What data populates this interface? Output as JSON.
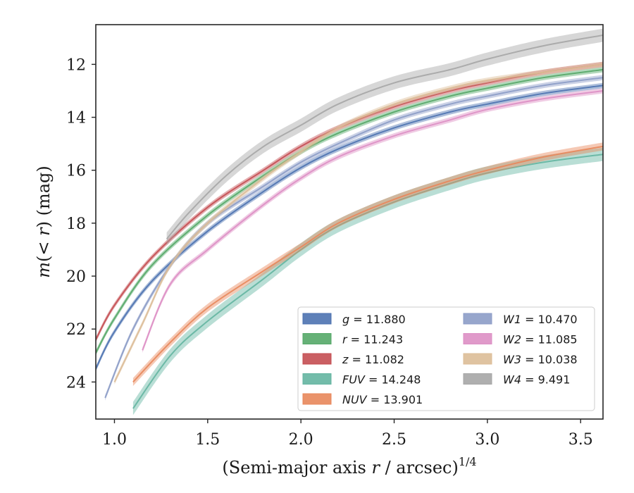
{
  "chart_data": {
    "type": "line",
    "xlabel": "(Semi-major axis r / arcsec)",
    "xlabel_var": "r",
    "xlabel_sup": "1/4",
    "ylabel": "m(< r) (mag)",
    "xlim": [
      0.9,
      3.62
    ],
    "ylim": [
      25.4,
      10.5
    ],
    "y_inverted": true,
    "x_ticks": [
      1.0,
      1.5,
      2.0,
      2.5,
      3.0,
      3.5
    ],
    "x_tick_labels": [
      "1.0",
      "1.5",
      "2.0",
      "2.5",
      "3.0",
      "3.5"
    ],
    "y_ticks": [
      12,
      14,
      16,
      18,
      20,
      22,
      24
    ],
    "y_tick_labels": [
      "12",
      "14",
      "16",
      "18",
      "20",
      "22",
      "24"
    ],
    "legend_position": "lower-right",
    "series": [
      {
        "name": "g",
        "legend_label": "g = 11.880",
        "color": "#4c72b0",
        "x": [
          0.9,
          1.0,
          1.2,
          1.5,
          1.8,
          2.0,
          2.2,
          2.5,
          2.8,
          3.0,
          3.3,
          3.62
        ],
        "y": [
          23.5,
          22.1,
          20.2,
          18.3,
          16.8,
          15.9,
          15.2,
          14.4,
          13.8,
          13.5,
          13.1,
          12.8
        ],
        "band_halfwidth": 0.1
      },
      {
        "name": "r",
        "legend_label": "r = 11.243",
        "color": "#55a868",
        "x": [
          0.9,
          1.0,
          1.2,
          1.5,
          1.8,
          2.0,
          2.2,
          2.5,
          2.8,
          3.0,
          3.3,
          3.62
        ],
        "y": [
          22.9,
          21.6,
          19.6,
          17.7,
          16.2,
          15.3,
          14.6,
          13.8,
          13.2,
          12.9,
          12.5,
          12.2
        ],
        "band_halfwidth": 0.1
      },
      {
        "name": "z",
        "legend_label": "z = 11.082",
        "color": "#c44e52",
        "x": [
          0.9,
          1.0,
          1.2,
          1.5,
          1.8,
          2.0,
          2.2,
          2.5,
          2.8,
          3.0,
          3.3,
          3.62
        ],
        "y": [
          22.4,
          21.1,
          19.3,
          17.4,
          16.0,
          15.1,
          14.4,
          13.6,
          13.0,
          12.7,
          12.3,
          12.0
        ],
        "band_halfwidth": 0.1
      },
      {
        "name": "FUV",
        "legend_label": "FUV = 14.248",
        "color": "#64b5a1",
        "x": [
          1.1,
          1.3,
          1.5,
          1.8,
          2.0,
          2.2,
          2.5,
          2.8,
          3.0,
          3.3,
          3.62
        ],
        "y": [
          25.0,
          23.0,
          21.7,
          20.1,
          19.0,
          18.1,
          17.2,
          16.5,
          16.1,
          15.7,
          15.4
        ],
        "band_halfwidth": 0.25
      },
      {
        "name": "NUV",
        "legend_label": "NUV = 13.901",
        "color": "#e8875b",
        "x": [
          1.1,
          1.3,
          1.5,
          1.8,
          2.0,
          2.2,
          2.5,
          2.8,
          3.0,
          3.3,
          3.62
        ],
        "y": [
          24.0,
          22.5,
          21.2,
          19.8,
          18.9,
          18.0,
          17.1,
          16.4,
          16.0,
          15.5,
          15.1
        ],
        "band_halfwidth": 0.15
      },
      {
        "name": "W1",
        "legend_label": "W1 = 10.470",
        "color": "#8c9cc7",
        "x": [
          0.95,
          1.1,
          1.3,
          1.5,
          1.8,
          2.0,
          2.2,
          2.5,
          2.8,
          3.0,
          3.3,
          3.62
        ],
        "y": [
          24.6,
          22.0,
          19.6,
          18.0,
          16.6,
          15.7,
          15.0,
          14.1,
          13.5,
          13.2,
          12.8,
          12.5
        ],
        "band_halfwidth": 0.1
      },
      {
        "name": "W2",
        "legend_label": "W2 = 11.085",
        "color": "#dd8fc4",
        "x": [
          1.15,
          1.3,
          1.5,
          1.8,
          2.0,
          2.2,
          2.5,
          2.8,
          3.0,
          3.3,
          3.62
        ],
        "y": [
          22.8,
          20.3,
          19.0,
          17.3,
          16.3,
          15.5,
          14.7,
          14.1,
          13.7,
          13.3,
          13.0
        ],
        "band_halfwidth": 0.1
      },
      {
        "name": "W3",
        "legend_label": "W3 = 10.038",
        "color": "#dcbc97",
        "x": [
          1.0,
          1.15,
          1.3,
          1.5,
          1.8,
          2.0,
          2.2,
          2.5,
          2.8,
          3.0,
          3.3,
          3.62
        ],
        "y": [
          24.0,
          21.8,
          19.6,
          18.0,
          16.3,
          15.3,
          14.4,
          13.5,
          12.9,
          12.6,
          12.3,
          12.0
        ],
        "band_halfwidth": 0.1
      },
      {
        "name": "W4",
        "legend_label": "W4 = 9.491",
        "color": "#a6a6a6",
        "x": [
          1.28,
          1.4,
          1.6,
          1.8,
          2.0,
          2.2,
          2.5,
          2.8,
          3.0,
          3.3,
          3.62
        ],
        "y": [
          18.6,
          17.6,
          16.2,
          15.1,
          14.3,
          13.5,
          12.7,
          12.2,
          11.8,
          11.3,
          10.9
        ],
        "band_halfwidth": 0.25
      }
    ]
  }
}
